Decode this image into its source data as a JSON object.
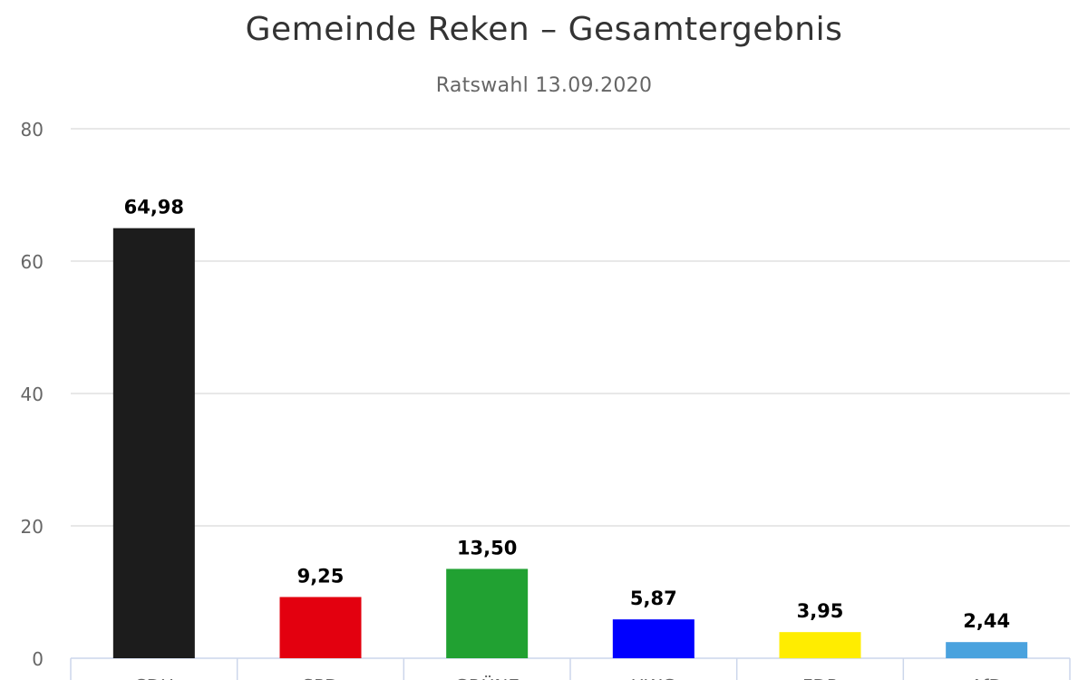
{
  "chart_data": {
    "type": "bar",
    "title": "Gemeinde Reken – Gesamtergebnis",
    "subtitle": "Ratswahl 13.09.2020",
    "xlabel": "",
    "ylabel": "",
    "categories": [
      "CDU",
      "SPD",
      "GRÜNE",
      "UWG",
      "FDP",
      "AfD"
    ],
    "values": [
      64.98,
      9.25,
      13.5,
      5.87,
      3.95,
      2.44
    ],
    "data_labels": [
      "64,98",
      "9,25",
      "13,50",
      "5,87",
      "3,95",
      "2,44"
    ],
    "colors": [
      "#1c1c1c",
      "#e3000f",
      "#21a132",
      "#0000ff",
      "#ffed00",
      "#4aa2de"
    ],
    "ylim": [
      0,
      80
    ],
    "yticks": [
      0,
      20,
      40,
      60,
      80
    ],
    "grid": true,
    "legend": "none"
  }
}
